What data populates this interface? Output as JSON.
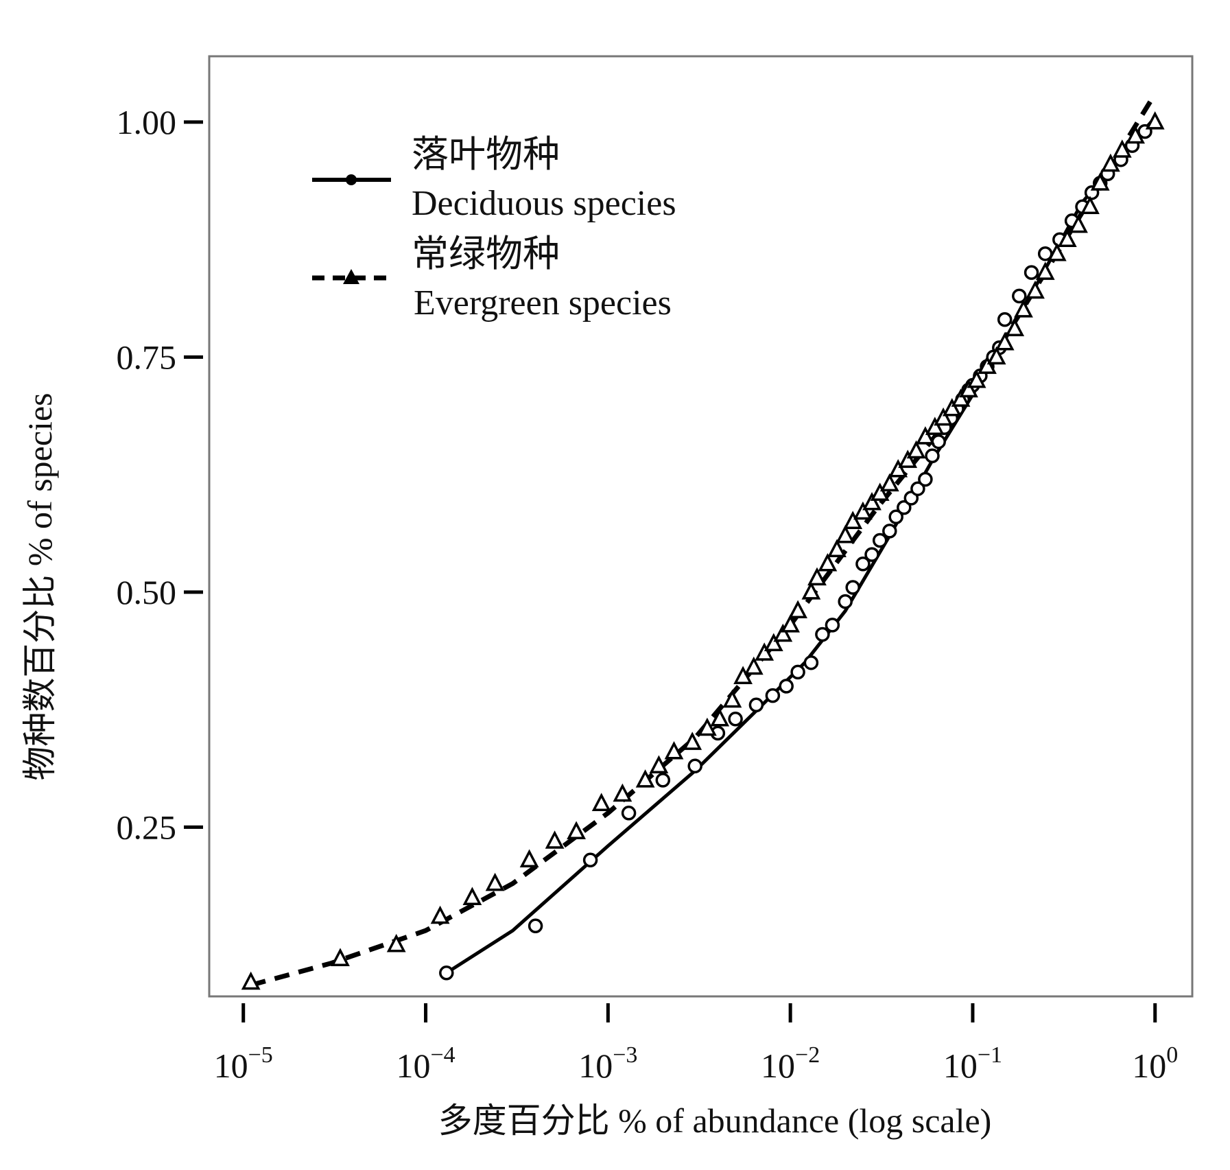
{
  "chart_data": {
    "type": "scatter",
    "xscale": "log",
    "xlim": [
      6.5e-06,
      1.6
    ],
    "ylim": [
      0.07,
      1.07
    ],
    "grid": false,
    "legend_position": "top-left",
    "xlabel": "多度百分比  % of abundance (log scale)",
    "ylabel": "物种数百分比  % of species",
    "xticks": [
      {
        "value": 1e-05,
        "base": "10",
        "exp": "−5"
      },
      {
        "value": 0.0001,
        "base": "10",
        "exp": "−4"
      },
      {
        "value": 0.001,
        "base": "10",
        "exp": "−3"
      },
      {
        "value": 0.01,
        "base": "10",
        "exp": "−2"
      },
      {
        "value": 0.1,
        "base": "10",
        "exp": "−1"
      },
      {
        "value": 1,
        "base": "10",
        "exp": "0"
      }
    ],
    "yticks": [
      {
        "value": 0.25,
        "label": "0.25"
      },
      {
        "value": 0.5,
        "label": "0.50"
      },
      {
        "value": 0.75,
        "label": "0.75"
      },
      {
        "value": 1.0,
        "label": "1.00"
      }
    ],
    "series": [
      {
        "name_cn": "落叶物种",
        "name_en": "Deciduous species",
        "marker": "circle",
        "line": "solid",
        "x": [
          0.00013,
          0.0004,
          0.0008,
          0.0013,
          0.002,
          0.003,
          0.004,
          0.005,
          0.0065,
          0.008,
          0.0095,
          0.011,
          0.013,
          0.015,
          0.017,
          0.02,
          0.022,
          0.025,
          0.028,
          0.031,
          0.035,
          0.038,
          0.042,
          0.046,
          0.05,
          0.055,
          0.06,
          0.065,
          0.07,
          0.076,
          0.082,
          0.088,
          0.095,
          0.1,
          0.11,
          0.12,
          0.13,
          0.14,
          0.15,
          0.18,
          0.21,
          0.25,
          0.3,
          0.35,
          0.4,
          0.45,
          0.5,
          0.55,
          0.65,
          0.75,
          0.88
        ],
        "y": [
          0.095,
          0.145,
          0.215,
          0.265,
          0.3,
          0.315,
          0.35,
          0.365,
          0.38,
          0.39,
          0.4,
          0.415,
          0.425,
          0.455,
          0.465,
          0.49,
          0.505,
          0.53,
          0.54,
          0.555,
          0.565,
          0.58,
          0.59,
          0.6,
          0.61,
          0.62,
          0.645,
          0.66,
          0.675,
          0.685,
          0.695,
          0.705,
          0.715,
          0.72,
          0.73,
          0.74,
          0.75,
          0.76,
          0.79,
          0.815,
          0.84,
          0.86,
          0.875,
          0.895,
          0.91,
          0.925,
          0.935,
          0.945,
          0.96,
          0.975,
          0.99
        ],
        "fit_x": [
          0.00013,
          0.0003,
          0.001,
          0.003,
          0.007,
          0.012,
          0.02,
          0.035,
          0.06,
          0.1,
          0.2,
          0.4,
          0.7,
          1.0
        ],
        "fit_y": [
          0.095,
          0.14,
          0.23,
          0.31,
          0.38,
          0.425,
          0.48,
          0.56,
          0.64,
          0.71,
          0.81,
          0.915,
          0.97,
          1.005
        ]
      },
      {
        "name_cn": "常绿物种",
        "name_en": "Evergreen species",
        "marker": "triangle",
        "line": "dashed",
        "x": [
          1.1e-05,
          3.4e-05,
          6.9e-05,
          0.00012,
          0.00018,
          0.00024,
          0.00037,
          0.00051,
          0.00067,
          0.00092,
          0.0012,
          0.0016,
          0.0019,
          0.0023,
          0.0029,
          0.0035,
          0.0041,
          0.0048,
          0.0055,
          0.0063,
          0.0072,
          0.0081,
          0.0091,
          0.01,
          0.011,
          0.013,
          0.014,
          0.016,
          0.018,
          0.02,
          0.022,
          0.025,
          0.028,
          0.031,
          0.035,
          0.039,
          0.044,
          0.049,
          0.055,
          0.062,
          0.069,
          0.077,
          0.086,
          0.095,
          0.105,
          0.12,
          0.135,
          0.15,
          0.17,
          0.19,
          0.22,
          0.25,
          0.29,
          0.33,
          0.38,
          0.44,
          0.5,
          0.57,
          0.66,
          0.78,
          1.0
        ],
        "y": [
          0.085,
          0.11,
          0.125,
          0.155,
          0.175,
          0.19,
          0.215,
          0.235,
          0.245,
          0.275,
          0.285,
          0.3,
          0.315,
          0.33,
          0.34,
          0.355,
          0.365,
          0.385,
          0.41,
          0.42,
          0.435,
          0.445,
          0.455,
          0.465,
          0.48,
          0.5,
          0.515,
          0.53,
          0.545,
          0.56,
          0.575,
          0.585,
          0.595,
          0.605,
          0.615,
          0.63,
          0.64,
          0.65,
          0.665,
          0.675,
          0.685,
          0.695,
          0.705,
          0.715,
          0.725,
          0.74,
          0.75,
          0.765,
          0.78,
          0.8,
          0.82,
          0.84,
          0.86,
          0.875,
          0.89,
          0.91,
          0.935,
          0.955,
          0.97,
          0.985,
          1.0
        ],
        "fit_x": [
          1.1e-05,
          3e-05,
          0.0001,
          0.0003,
          0.001,
          0.003,
          0.01,
          0.03,
          0.1,
          0.3,
          1.0
        ],
        "fit_y": [
          0.082,
          0.105,
          0.14,
          0.19,
          0.265,
          0.345,
          0.465,
          0.59,
          0.715,
          0.865,
          1.03
        ]
      }
    ]
  }
}
